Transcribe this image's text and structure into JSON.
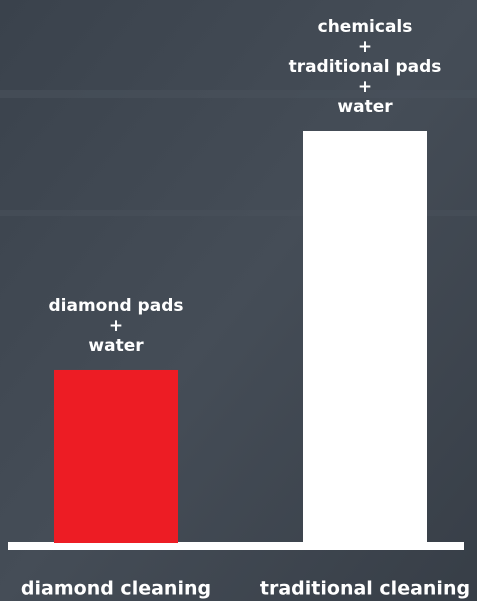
{
  "chart_data": {
    "type": "bar",
    "categories": [
      "diamond cleaning",
      "traditional cleaning"
    ],
    "values": [
      42,
      100
    ],
    "colors": [
      "#ed1c24",
      "#ffffff"
    ],
    "annotations": [
      [
        "diamond pads",
        "+",
        "water"
      ],
      [
        "chemicals",
        "+",
        "traditional pads",
        "+",
        "water"
      ]
    ],
    "ylim": [
      0,
      100
    ]
  }
}
